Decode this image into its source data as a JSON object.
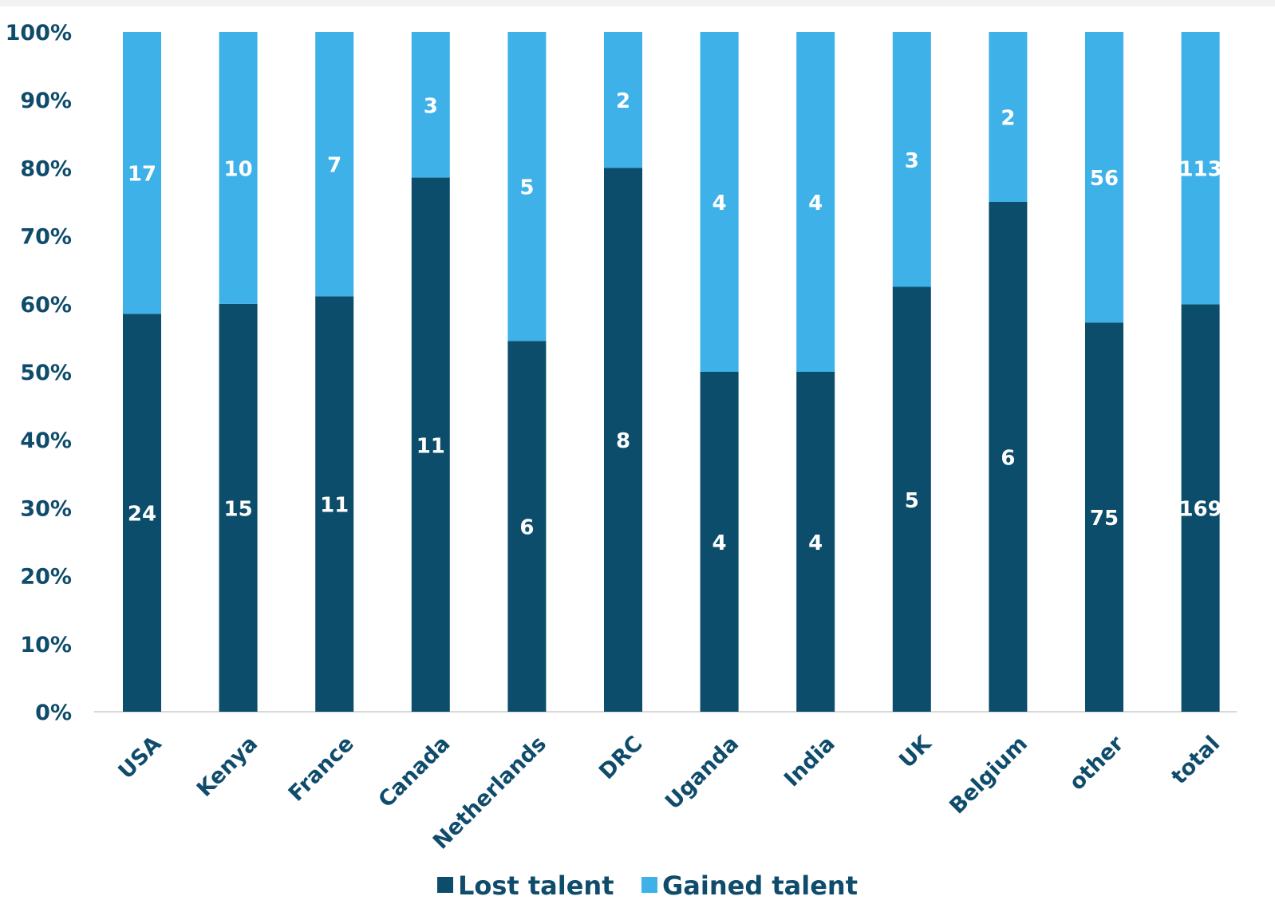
{
  "chart_data": {
    "type": "bar",
    "stacking": "percent",
    "categories": [
      "USA",
      "Kenya",
      "France",
      "Canada",
      "Netherlands",
      "DRC",
      "Uganda",
      "India",
      "UK",
      "Belgium",
      "other",
      "total"
    ],
    "series": [
      {
        "name": "Lost talent",
        "values": [
          24,
          15,
          11,
          11,
          6,
          8,
          4,
          4,
          5,
          6,
          75,
          169
        ],
        "color": "#0c4d6b"
      },
      {
        "name": "Gained talent",
        "values": [
          17,
          10,
          7,
          3,
          5,
          2,
          4,
          4,
          3,
          2,
          56,
          113
        ],
        "color": "#3db1e8"
      }
    ],
    "y_ticks": [
      "0%",
      "10%",
      "20%",
      "30%",
      "40%",
      "50%",
      "60%",
      "70%",
      "80%",
      "90%",
      "100%"
    ],
    "ylim": [
      0,
      100
    ],
    "grid": false,
    "legend_position": "bottom"
  }
}
